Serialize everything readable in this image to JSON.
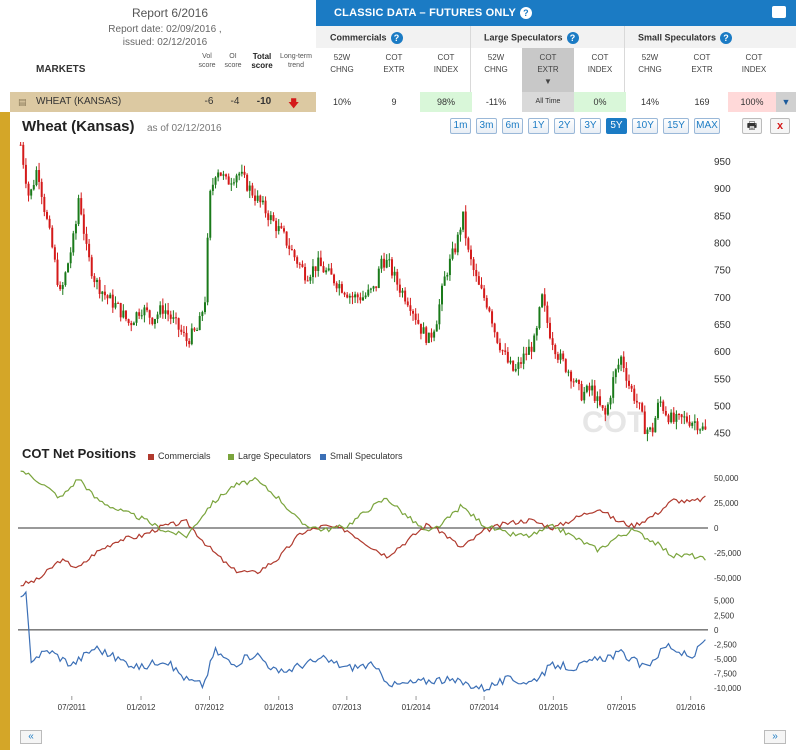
{
  "report": {
    "title": "Report 6/2016",
    "date_line": "Report date: 02/09/2016 ,",
    "issued_line": "issued: 02/12/2016"
  },
  "markets_header": "MARKETS",
  "score_headers": {
    "vol": "Vol score",
    "oi": "OI score",
    "total": "Total score",
    "trend": "Long-term trend"
  },
  "panel": {
    "title": "CLASSIC DATA – FUTURES ONLY",
    "categories": [
      "Commercials",
      "Large Speculators",
      "Small Speculators"
    ],
    "columns": [
      "52W CHNG",
      "COT EXTR",
      "COT INDEX",
      "52W CHNG",
      "COT EXTR",
      "COT INDEX",
      "52W CHNG",
      "COT EXTR",
      "COT INDEX"
    ]
  },
  "row": {
    "market": "WHEAT (KANSAS)",
    "vol_score": "-6",
    "oi_score": "-4",
    "total_score": "-10",
    "values": [
      "10%",
      "9",
      "98%",
      "-11%",
      "All Time",
      "0%",
      "14%",
      "169",
      "100%"
    ]
  },
  "chart_title": "Wheat (Kansas)",
  "as_of": "as of 02/12/2016",
  "ranges": [
    "1m",
    "3m",
    "6m",
    "1Y",
    "2Y",
    "3Y",
    "5Y",
    "10Y",
    "15Y",
    "MAX"
  ],
  "active_range": "5Y",
  "watermark": "COT",
  "cot_title": "COT Net Positions",
  "colors": {
    "commercials": "#b03a2e",
    "large": "#7aa43c",
    "small": "#3b6fb6",
    "up": "#1a7a1a",
    "down": "#d41a1a"
  },
  "nav": {
    "prev": "«",
    "next": "»"
  },
  "chart_data": [
    {
      "type": "line",
      "title": "Wheat (Kansas)",
      "ylim": [
        440,
        985
      ],
      "yticks": [
        450,
        500,
        550,
        600,
        650,
        700,
        750,
        800,
        850,
        900,
        950
      ],
      "series": [
        {
          "points": [
            [
              "2011-02-15",
              980
            ],
            [
              "2011-03-10",
              880
            ],
            [
              "2011-04-01",
              940
            ],
            [
              "2011-04-20",
              860
            ],
            [
              "2011-05-10",
              790
            ],
            [
              "2011-06-01",
              700
            ],
            [
              "2011-06-20",
              760
            ],
            [
              "2011-07-10",
              820
            ],
            [
              "2011-07-20",
              890
            ],
            [
              "2011-08-10",
              780
            ],
            [
              "2011-09-01",
              730
            ],
            [
              "2011-10-01",
              700
            ],
            [
              "2011-11-01",
              680
            ],
            [
              "2011-12-01",
              650
            ],
            [
              "2012-01-01",
              680
            ],
            [
              "2012-02-01",
              660
            ],
            [
              "2012-03-01",
              680
            ],
            [
              "2012-04-01",
              650
            ],
            [
              "2012-05-01",
              620
            ],
            [
              "2012-06-01",
              640
            ],
            [
              "2012-06-20",
              700
            ],
            [
              "2012-07-01",
              880
            ],
            [
              "2012-07-20",
              940
            ],
            [
              "2012-08-15",
              910
            ],
            [
              "2012-09-15",
              930
            ],
            [
              "2012-10-15",
              900
            ],
            [
              "2012-11-15",
              870
            ],
            [
              "2012-12-15",
              840
            ],
            [
              "2013-01-15",
              810
            ],
            [
              "2013-02-15",
              770
            ],
            [
              "2013-03-15",
              740
            ],
            [
              "2013-04-15",
              760
            ],
            [
              "2013-05-15",
              740
            ],
            [
              "2013-06-15",
              720
            ],
            [
              "2013-07-15",
              700
            ],
            [
              "2013-08-15",
              700
            ],
            [
              "2013-09-15",
              715
            ],
            [
              "2013-10-01",
              770
            ],
            [
              "2013-10-20",
              760
            ],
            [
              "2013-11-15",
              720
            ],
            [
              "2013-12-15",
              690
            ],
            [
              "2014-01-15",
              640
            ],
            [
              "2014-02-05",
              620
            ],
            [
              "2014-02-25",
              660
            ],
            [
              "2014-03-20",
              740
            ],
            [
              "2014-04-20",
              800
            ],
            [
              "2014-05-05",
              850
            ],
            [
              "2014-05-20",
              780
            ],
            [
              "2014-06-15",
              720
            ],
            [
              "2014-07-15",
              680
            ],
            [
              "2014-08-01",
              630
            ],
            [
              "2014-09-01",
              580
            ],
            [
              "2014-09-20",
              560
            ],
            [
              "2014-10-15",
              590
            ],
            [
              "2014-11-15",
              620
            ],
            [
              "2014-12-01",
              700
            ],
            [
              "2014-12-20",
              640
            ],
            [
              "2015-01-15",
              590
            ],
            [
              "2015-02-15",
              560
            ],
            [
              "2015-03-15",
              520
            ],
            [
              "2015-04-15",
              530
            ],
            [
              "2015-05-01",
              500
            ],
            [
              "2015-05-20",
              480
            ],
            [
              "2015-06-10",
              550
            ],
            [
              "2015-07-01",
              590
            ],
            [
              "2015-07-20",
              540
            ],
            [
              "2015-08-15",
              500
            ],
            [
              "2015-09-01",
              460
            ],
            [
              "2015-09-20",
              450
            ],
            [
              "2015-10-10",
              510
            ],
            [
              "2015-10-25",
              490
            ],
            [
              "2015-11-15",
              470
            ],
            [
              "2015-12-15",
              475
            ],
            [
              "2016-01-15",
              470
            ],
            [
              "2016-02-12",
              450
            ]
          ]
        }
      ]
    },
    {
      "type": "line",
      "title": "COT Net Positions",
      "ylim": [
        -60000,
        60000
      ],
      "yticks": [
        -50000,
        -25000,
        0,
        25000,
        50000
      ],
      "series": [
        {
          "name": "Commercials",
          "color": "#b03a2e",
          "points": [
            [
              "2011-02-15",
              -57000
            ],
            [
              "2011-04-01",
              -52000
            ],
            [
              "2011-06-01",
              -32000
            ],
            [
              "2011-07-20",
              -40000
            ],
            [
              "2011-09-01",
              -25000
            ],
            [
              "2011-11-01",
              -12000
            ],
            [
              "2012-01-01",
              -8000
            ],
            [
              "2012-03-01",
              2000
            ],
            [
              "2012-05-01",
              6000
            ],
            [
              "2012-07-01",
              -20000
            ],
            [
              "2012-09-01",
              -42000
            ],
            [
              "2012-11-01",
              -45000
            ],
            [
              "2013-01-01",
              -30000
            ],
            [
              "2013-03-01",
              -5000
            ],
            [
              "2013-05-01",
              2000
            ],
            [
              "2013-07-01",
              -2000
            ],
            [
              "2013-09-01",
              -18000
            ],
            [
              "2013-10-15",
              -28000
            ],
            [
              "2013-12-01",
              -15000
            ],
            [
              "2014-02-01",
              4000
            ],
            [
              "2014-03-15",
              -5000
            ],
            [
              "2014-05-01",
              -20000
            ],
            [
              "2014-07-01",
              -3000
            ],
            [
              "2014-09-01",
              5000
            ],
            [
              "2014-11-01",
              8000
            ],
            [
              "2015-01-01",
              0
            ],
            [
              "2015-03-01",
              10000
            ],
            [
              "2015-05-01",
              20000
            ],
            [
              "2015-06-15",
              8000
            ],
            [
              "2015-08-01",
              2000
            ],
            [
              "2015-10-01",
              14000
            ],
            [
              "2015-11-15",
              28000
            ],
            [
              "2016-01-01",
              26000
            ],
            [
              "2016-02-12",
              30000
            ]
          ]
        },
        {
          "name": "Large Speculators",
          "color": "#7aa43c",
          "points": [
            [
              "2011-02-15",
              58000
            ],
            [
              "2011-04-01",
              48000
            ],
            [
              "2011-06-01",
              30000
            ],
            [
              "2011-07-20",
              50000
            ],
            [
              "2011-09-01",
              30000
            ],
            [
              "2011-11-01",
              18000
            ],
            [
              "2012-01-01",
              10000
            ],
            [
              "2012-03-01",
              -2000
            ],
            [
              "2012-05-01",
              -8000
            ],
            [
              "2012-07-01",
              22000
            ],
            [
              "2012-09-01",
              42000
            ],
            [
              "2012-11-01",
              48000
            ],
            [
              "2013-01-01",
              30000
            ],
            [
              "2013-03-01",
              5000
            ],
            [
              "2013-05-01",
              -2000
            ],
            [
              "2013-07-01",
              2000
            ],
            [
              "2013-09-01",
              20000
            ],
            [
              "2013-10-15",
              30000
            ],
            [
              "2013-12-01",
              14000
            ],
            [
              "2014-02-01",
              -5000
            ],
            [
              "2014-03-15",
              5000
            ],
            [
              "2014-05-01",
              22000
            ],
            [
              "2014-07-01",
              3000
            ],
            [
              "2014-09-01",
              -6000
            ],
            [
              "2014-11-01",
              -8000
            ],
            [
              "2015-01-01",
              2000
            ],
            [
              "2015-03-01",
              -10000
            ],
            [
              "2015-05-01",
              -22000
            ],
            [
              "2015-06-15",
              -10000
            ],
            [
              "2015-08-01",
              -2000
            ],
            [
              "2015-10-01",
              -15000
            ],
            [
              "2015-11-15",
              -28000
            ],
            [
              "2016-01-01",
              -27000
            ],
            [
              "2016-02-12",
              -32000
            ]
          ]
        },
        {
          "name": "Small Speculators",
          "color": "#3b6fb6",
          "ylim": [
            -11000,
            6500
          ],
          "yticks": [
            -10000,
            -7500,
            -5000,
            -2500,
            0,
            2500,
            5000
          ],
          "points": [
            [
              "2011-02-15",
              5000
            ],
            [
              "2011-03-01",
              6000
            ],
            [
              "2011-03-15",
              -5000
            ],
            [
              "2011-05-01",
              -3500
            ],
            [
              "2011-07-01",
              -6000
            ],
            [
              "2011-09-01",
              -3000
            ],
            [
              "2011-11-01",
              -5000
            ],
            [
              "2012-01-01",
              -6500
            ],
            [
              "2012-03-01",
              -5000
            ],
            [
              "2012-05-01",
              -8500
            ],
            [
              "2012-06-15",
              -9500
            ],
            [
              "2012-07-15",
              -3500
            ],
            [
              "2012-09-01",
              -6000
            ],
            [
              "2012-11-01",
              -4000
            ],
            [
              "2013-01-01",
              -7500
            ],
            [
              "2013-03-01",
              -6000
            ],
            [
              "2013-05-01",
              -5000
            ],
            [
              "2013-07-01",
              -6500
            ],
            [
              "2013-09-01",
              -6000
            ],
            [
              "2013-11-01",
              -9500
            ],
            [
              "2014-01-01",
              -9000
            ],
            [
              "2014-03-01",
              -8500
            ],
            [
              "2014-05-01",
              -9000
            ],
            [
              "2014-07-01",
              -10000
            ],
            [
              "2014-09-01",
              -8500
            ],
            [
              "2014-11-01",
              -9000
            ],
            [
              "2015-01-01",
              -6000
            ],
            [
              "2015-03-01",
              -6500
            ],
            [
              "2015-05-01",
              -5000
            ],
            [
              "2015-07-01",
              -4000
            ],
            [
              "2015-09-01",
              -6500
            ],
            [
              "2015-11-01",
              -2500
            ],
            [
              "2016-01-01",
              -5000
            ],
            [
              "2016-02-12",
              -1500
            ]
          ]
        }
      ]
    }
  ],
  "x_ticks": [
    "07/2011",
    "01/2012",
    "07/2012",
    "01/2013",
    "07/2013",
    "01/2014",
    "07/2014",
    "01/2015",
    "07/2015",
    "01/2016"
  ]
}
